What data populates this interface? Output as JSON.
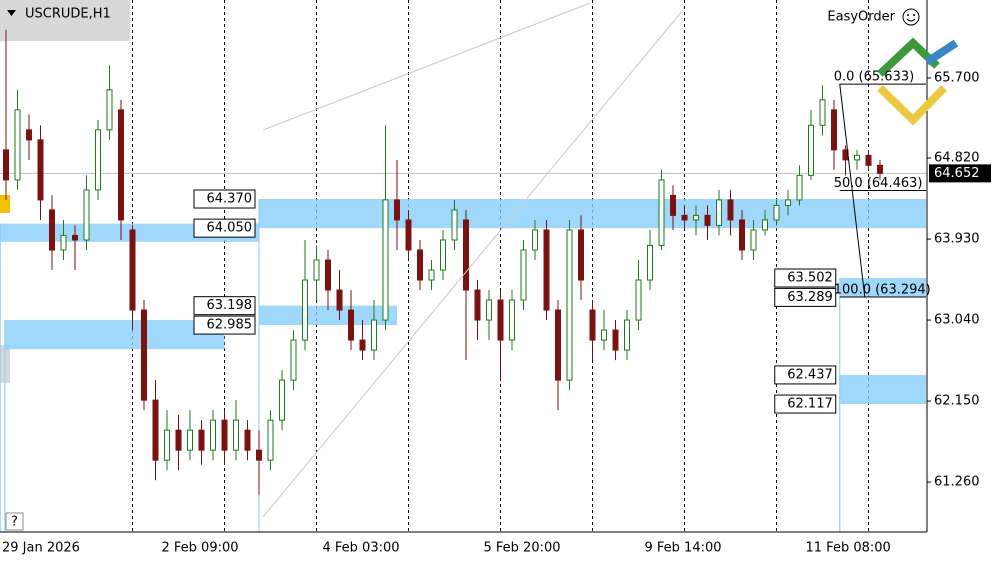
{
  "chart_data": {
    "type": "candlestick",
    "title": "USCRUDE,H1",
    "brand": "EasyOrder",
    "help": "?",
    "categories": [
      null,
      null,
      null,
      "29 Jan 2026",
      null,
      null,
      null,
      null,
      null,
      null,
      null,
      null,
      null,
      null,
      null,
      null,
      null,
      "2 Feb 09:00",
      null,
      null,
      null,
      null,
      null,
      null,
      null,
      null,
      null,
      null,
      null,
      null,
      null,
      "4 Feb 03:00",
      null,
      null,
      null,
      null,
      null,
      null,
      null,
      null,
      null,
      null,
      null,
      null,
      null,
      "5 Feb 20:00",
      null,
      null,
      null,
      null,
      null,
      null,
      null,
      null,
      null,
      null,
      null,
      null,
      null,
      "9 Feb 14:00",
      null,
      null,
      null,
      null,
      null,
      null,
      null,
      null,
      null,
      null,
      null,
      null,
      null,
      "11 Feb 08:00",
      null,
      null,
      null
    ],
    "open": [
      64.91,
      64.58,
      65.13,
      65.02,
      64.25,
      63.81,
      63.97,
      63.92,
      64.47,
      65.13,
      65.35,
      64.03,
      63.15,
      62.16,
      61.5,
      61.83,
      61.61,
      61.83,
      61.61,
      61.94,
      61.61,
      61.83,
      61.61,
      61.5,
      61.94,
      62.38,
      62.82,
      63.48,
      63.7,
      63.37,
      63.15,
      62.82,
      62.71,
      63.04,
      64.36,
      64.14,
      63.81,
      63.48,
      63.59,
      63.92,
      64.14,
      63.37,
      63.04,
      63.26,
      62.82,
      63.26,
      63.81,
      64.03,
      63.15,
      62.38,
      64.03,
      63.15,
      62.82,
      62.93,
      62.71,
      63.04,
      63.48,
      63.86,
      64.41,
      64.19,
      64.14,
      64.19,
      64.08,
      64.36,
      64.14,
      63.81,
      64.03,
      64.14,
      64.3,
      64.36,
      64.63,
      65.18,
      65.35,
      64.91,
      64.8,
      64.85,
      64.74
    ],
    "high": [
      66.23,
      65.57,
      65.3,
      65.18,
      64.41,
      64.14,
      64.08,
      64.63,
      65.24,
      65.84,
      65.46,
      64.08,
      63.26,
      62.38,
      62.05,
      62.0,
      62.05,
      61.94,
      62.05,
      62.05,
      62.16,
      61.94,
      61.83,
      62.05,
      62.49,
      62.93,
      63.92,
      63.86,
      63.81,
      63.59,
      63.37,
      63.04,
      63.26,
      65.18,
      64.8,
      64.25,
      63.92,
      63.7,
      64.03,
      64.36,
      64.25,
      63.48,
      63.37,
      63.37,
      63.37,
      63.92,
      64.14,
      64.14,
      63.26,
      64.14,
      64.19,
      63.26,
      63.15,
      63.04,
      63.15,
      63.7,
      64.03,
      64.69,
      64.52,
      64.3,
      64.3,
      64.3,
      64.47,
      64.47,
      64.25,
      64.14,
      64.25,
      64.36,
      64.47,
      64.74,
      65.35,
      65.62,
      65.46,
      64.96,
      64.91,
      64.91,
      64.8
    ],
    "low": [
      64.36,
      64.47,
      64.8,
      64.14,
      63.59,
      63.7,
      63.59,
      63.81,
      64.36,
      65.02,
      63.92,
      62.93,
      62.05,
      61.28,
      61.39,
      61.39,
      61.5,
      61.45,
      61.5,
      61.45,
      61.5,
      61.5,
      61.12,
      61.39,
      61.83,
      62.27,
      62.71,
      63.26,
      63.15,
      63.04,
      62.71,
      62.6,
      62.6,
      62.93,
      63.81,
      63.7,
      63.37,
      63.37,
      63.48,
      63.81,
      62.6,
      62.82,
      62.82,
      62.38,
      62.71,
      63.15,
      63.7,
      63.04,
      62.05,
      62.27,
      63.26,
      62.6,
      62.71,
      62.6,
      62.6,
      62.93,
      63.37,
      63.81,
      64.03,
      64.03,
      63.97,
      63.92,
      63.97,
      63.97,
      63.7,
      63.7,
      63.97,
      64.08,
      64.19,
      64.3,
      64.58,
      65.07,
      64.69,
      64.63,
      64.69,
      64.69,
      64.58
    ],
    "close": [
      64.58,
      65.35,
      65.02,
      64.36,
      63.81,
      63.97,
      63.92,
      64.47,
      65.13,
      65.57,
      64.14,
      63.15,
      62.16,
      61.5,
      61.83,
      61.61,
      61.83,
      61.61,
      61.94,
      61.61,
      61.94,
      61.61,
      61.5,
      61.94,
      62.38,
      62.82,
      63.48,
      63.7,
      63.37,
      63.15,
      62.82,
      62.71,
      63.04,
      64.36,
      64.14,
      63.81,
      63.48,
      63.59,
      63.92,
      64.25,
      63.37,
      63.04,
      63.26,
      62.82,
      63.26,
      63.81,
      64.03,
      63.15,
      62.38,
      64.03,
      63.48,
      62.82,
      62.93,
      62.71,
      63.04,
      63.48,
      63.86,
      64.58,
      64.19,
      64.14,
      64.19,
      64.08,
      64.36,
      64.14,
      63.81,
      64.03,
      64.14,
      64.3,
      64.36,
      64.63,
      65.18,
      65.46,
      64.91,
      64.8,
      64.85,
      64.74,
      64.652
    ],
    "up_color": "#1f7a1f",
    "down_color": "#7a1212",
    "ylim": [
      60.711,
      66.557
    ],
    "yticks": [
      {
        "value": 61.26,
        "label": "61.260"
      },
      {
        "value": 62.15,
        "label": "62.150"
      },
      {
        "value": 63.04,
        "label": "63.040"
      },
      {
        "value": 63.93,
        "label": "63.930"
      },
      {
        "value": 64.82,
        "label": "64.820"
      },
      {
        "value": 65.7,
        "label": "65.700"
      }
    ],
    "x_separators": [
      11,
      19,
      27,
      35,
      43,
      51,
      59,
      67,
      75
    ],
    "last_price": {
      "value": 64.652,
      "label": "64.652"
    },
    "zones": [
      {
        "top": {
          "value": 64.37,
          "label": "64.370"
        },
        "bottom": {
          "value": 64.05,
          "label": "64.050"
        },
        "from": 22,
        "to": 80
      },
      {
        "top": 64.1,
        "bottom": 63.9,
        "from": -0.5,
        "to": 22
      },
      {
        "top": {
          "value": 63.198,
          "label": "63.198"
        },
        "bottom": {
          "value": 62.985,
          "label": "62.985"
        },
        "from": 22,
        "to": 34
      },
      {
        "top": 63.04,
        "bottom": 62.72,
        "from": -0.1,
        "to": 19
      },
      {
        "top": {
          "value": 63.502,
          "label": "63.502"
        },
        "bottom": {
          "value": 63.289,
          "label": "63.289"
        },
        "from": 72.5,
        "to": 80
      },
      {
        "top": {
          "value": 62.437,
          "label": "62.437"
        },
        "bottom": {
          "value": 62.117,
          "label": "62.117"
        },
        "from": 72.5,
        "to": 80
      }
    ],
    "zone_color": "#87cefa",
    "fibonacci": {
      "from": 72.5,
      "to": 80,
      "levels": [
        {
          "price": 65.633,
          "label": "0.0 (65.633)"
        },
        {
          "price": 64.463,
          "label": "50.0 (64.463)"
        },
        {
          "price": 63.294,
          "label": "100.0 (63.294)"
        }
      ]
    }
  }
}
